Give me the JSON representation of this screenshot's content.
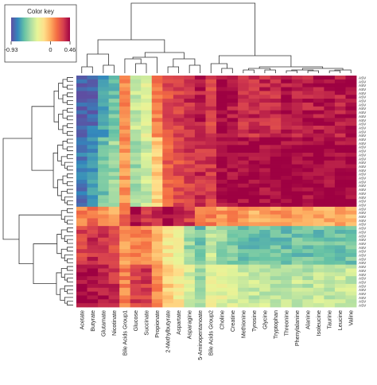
{
  "chart_data": {
    "type": "heatmap",
    "color_key": {
      "title": "Color key",
      "min": -0.93,
      "max": 0.46,
      "ticks": [
        "-0.93",
        "0",
        "0.46"
      ],
      "colors": [
        "#5e4fa2",
        "#3288bd",
        "#66c2a5",
        "#abdda4",
        "#e6f598",
        "#fee08b",
        "#fdae61",
        "#f46d43",
        "#d53e4f",
        "#9e0142"
      ]
    },
    "columns": [
      "Acetate",
      "Butyrate",
      "Glutamate",
      "Nicotinate",
      "Bile Acids Group1",
      "Glucose",
      "Succinate",
      "Propionate",
      "2-Methylbutyrate",
      "Aspartate",
      "Asparagine",
      "5-Aminopentanoate",
      "Bile Acids Group2",
      "Choline",
      "Creatine",
      "Methionine",
      "Tyrosine",
      "Glycine",
      "Tryptophan",
      "Threonine",
      "Phenylalanine",
      "Alanine",
      "Isoleucine",
      "Taurine",
      "Leucine",
      "Valine"
    ],
    "row_count": 60,
    "row_label_prefix": "ASV",
    "column_profiles": {
      "A": [
        -0.9,
        -0.85,
        -0.7,
        -0.6,
        0.1,
        -0.4,
        -0.3,
        0.1,
        0.25,
        0.3,
        0.35,
        0.4,
        0.3,
        0.45,
        0.4,
        0.35,
        0.35,
        0.35,
        0.35,
        0.4,
        0.4,
        0.4,
        0.4,
        0.4,
        0.4,
        0.45
      ],
      "B": [
        -0.8,
        -0.75,
        -0.6,
        -0.5,
        0.05,
        -0.5,
        -0.4,
        -0.1,
        0.2,
        0.25,
        0.3,
        0.35,
        0.3,
        0.45,
        0.45,
        0.45,
        0.45,
        0.45,
        0.45,
        0.45,
        0.45,
        0.45,
        0.45,
        0.45,
        0.45,
        0.46
      ],
      "C": [
        0.1,
        0.15,
        0.05,
        0.0,
        0.2,
        0.45,
        0.3,
        0.35,
        0.45,
        0.4,
        0.3,
        0.15,
        0.1,
        0.05,
        0.05,
        0.05,
        0.0,
        0.0,
        0.05,
        0.05,
        0.05,
        0.05,
        0.0,
        0.0,
        0.0,
        0.0
      ],
      "D": [
        0.3,
        0.35,
        0.3,
        0.25,
        0.05,
        0.1,
        0.1,
        0.0,
        -0.2,
        -0.3,
        -0.5,
        -0.6,
        -0.4,
        -0.5,
        -0.55,
        -0.6,
        -0.6,
        -0.6,
        -0.6,
        -0.6,
        -0.6,
        -0.6,
        -0.6,
        -0.6,
        -0.6,
        -0.6
      ],
      "E": [
        0.45,
        0.4,
        0.4,
        0.35,
        0.1,
        0.3,
        0.3,
        0.1,
        -0.1,
        -0.2,
        -0.35,
        -0.5,
        -0.3,
        -0.3,
        -0.35,
        -0.4,
        -0.4,
        -0.4,
        -0.45,
        -0.4,
        -0.4,
        -0.45,
        -0.4,
        -0.4,
        -0.4,
        -0.4
      ]
    },
    "row_profiles": [
      "A",
      "A",
      "A",
      "A",
      "A",
      "A",
      "A",
      "A",
      "A",
      "A",
      "A",
      "A",
      "A",
      "A",
      "A",
      "A",
      "B",
      "B",
      "B",
      "B",
      "B",
      "B",
      "B",
      "B",
      "B",
      "B",
      "B",
      "B",
      "B",
      "B",
      "B",
      "B",
      "B",
      "B",
      "C",
      "C",
      "C",
      "C",
      "C",
      "D",
      "D",
      "D",
      "D",
      "D",
      "D",
      "D",
      "D",
      "D",
      "D",
      "E",
      "E",
      "E",
      "E",
      "E",
      "E",
      "E",
      "E",
      "E",
      "E",
      "E"
    ],
    "row_dendrogram": true,
    "column_dendrogram": true,
    "legend_position": "top-left"
  }
}
